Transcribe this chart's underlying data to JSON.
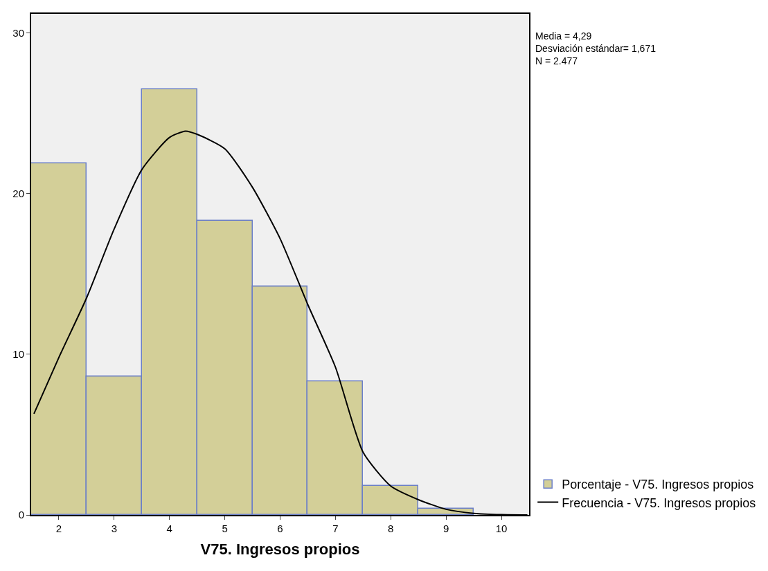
{
  "chart_data": {
    "type": "histogram",
    "xlabel": "V75. Ingresos propios",
    "bins": [
      1.5,
      2.5,
      3.5,
      4.5,
      5.5,
      6.5,
      7.5,
      8.5,
      9.5
    ],
    "series": [
      {
        "name": "Porcentaje - V75. Ingresos propios",
        "color": "#d3cf98",
        "values": [
          21.9,
          8.6,
          26.5,
          18.3,
          14.2,
          8.3,
          1.8,
          0.4
        ]
      },
      {
        "type": "line",
        "name": "Frecuencia - V75. Ingresos propios",
        "color": "#000000",
        "x": [
          1.55,
          2.0,
          2.5,
          3.0,
          3.5,
          4.0,
          4.29,
          4.5,
          5.0,
          5.5,
          6.0,
          6.5,
          7.0,
          7.5,
          8.0,
          8.5,
          9.0,
          9.5,
          10.0,
          10.47
        ],
        "values": [
          6.3,
          9.8,
          13.5,
          17.8,
          21.5,
          23.5,
          23.9,
          23.7,
          22.8,
          20.4,
          17.2,
          13.1,
          9.2,
          3.9,
          1.8,
          0.95,
          0.35,
          0.1,
          0.02,
          0.0
        ]
      }
    ],
    "xlim": [
      1.5,
      10.5
    ],
    "xticks": [
      2,
      3,
      4,
      5,
      6,
      7,
      8,
      9,
      10
    ],
    "ylim": [
      0,
      31.2
    ],
    "yticks": [
      0,
      10,
      20,
      30
    ],
    "annotations": [
      "Media = 4,29\nDesviación estándar= 1,671\nN = 2.477"
    ],
    "grid": false,
    "legend": "bottom right",
    "marker": "none",
    "line_style": "solid"
  }
}
